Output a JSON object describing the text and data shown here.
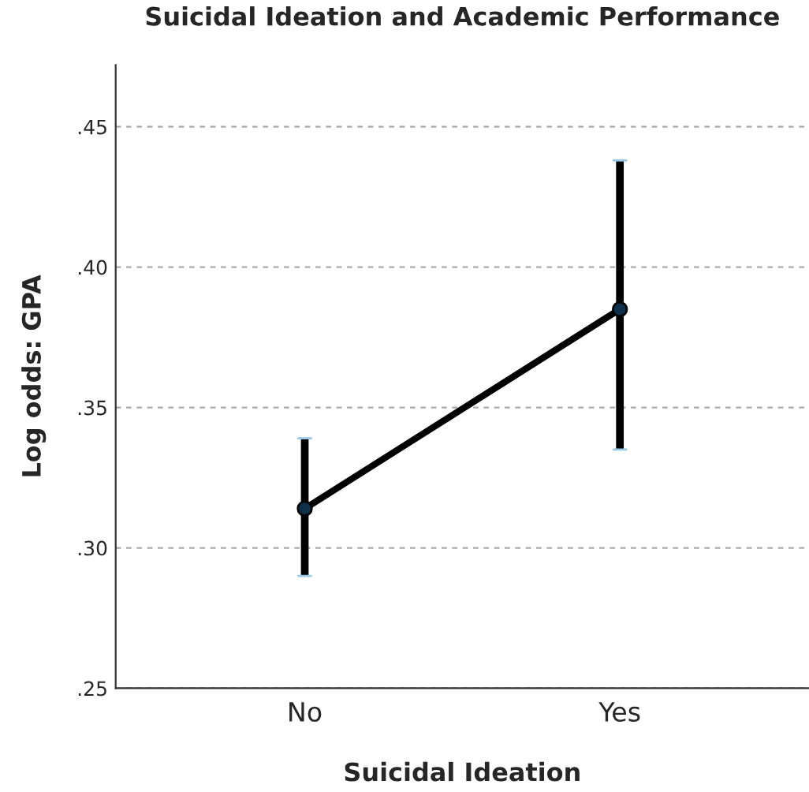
{
  "chart_data": {
    "type": "line",
    "title": "Suicidal Ideation and Academic Performance",
    "xlabel": "Suicidal Ideation",
    "ylabel": "Log odds: GPA",
    "categories": [
      "No",
      "Yes"
    ],
    "series": [
      {
        "color": "#000000",
        "values": [
          0.314,
          0.385
        ],
        "errors": [
          [
            0.29,
            0.339
          ],
          [
            0.335,
            0.438
          ]
        ]
      }
    ],
    "ylim": [
      0.25,
      0.472
    ],
    "yticks": [
      {
        "value": 0.25,
        "label": ".25"
      },
      {
        "value": 0.3,
        "label": ".30"
      },
      {
        "value": 0.35,
        "label": ".35"
      },
      {
        "value": 0.4,
        "label": ".40"
      },
      {
        "value": 0.45,
        "label": ".45"
      }
    ],
    "grid": "y",
    "marker": "circle",
    "line_style": "solid",
    "legend": false
  }
}
